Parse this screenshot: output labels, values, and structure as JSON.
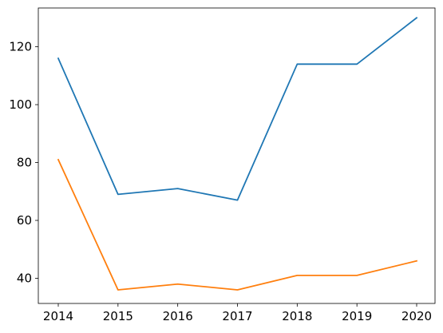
{
  "chart_data": {
    "type": "line",
    "x": [
      "2014",
      "2015",
      "2016",
      "2017",
      "2018",
      "2019",
      "2020"
    ],
    "series": [
      {
        "color": "#1f77b4",
        "values": [
          116,
          69,
          71,
          67,
          114,
          114,
          130
        ]
      },
      {
        "color": "#ff7f0e",
        "values": [
          81,
          36,
          38,
          36,
          41,
          41,
          46
        ]
      }
    ],
    "yticks": [
      40,
      60,
      80,
      100,
      120
    ],
    "ylim": [
      31.3,
      133.4
    ],
    "grid": false,
    "legend": false
  }
}
